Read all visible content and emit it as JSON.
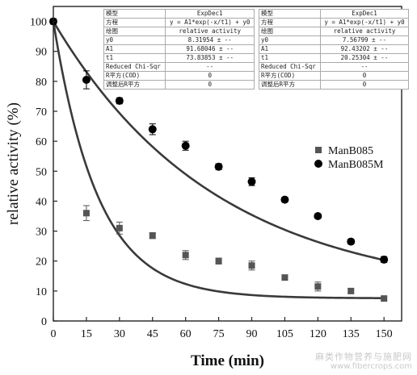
{
  "chart_data": {
    "type": "scatter",
    "xlabel": "Time (min)",
    "ylabel": "relative activity (%)",
    "x_ticks": [
      0,
      15,
      30,
      45,
      60,
      75,
      90,
      105,
      120,
      135,
      150
    ],
    "y_ticks": [
      0,
      10,
      20,
      30,
      40,
      50,
      60,
      70,
      80,
      90,
      100
    ],
    "xlim": [
      0,
      158
    ],
    "ylim": [
      0,
      105
    ],
    "legend_position": "right",
    "series": [
      {
        "name": "ManB085",
        "marker": "square",
        "color": "#555555",
        "points": [
          {
            "x": 0,
            "y": 100,
            "err": 0
          },
          {
            "x": 15,
            "y": 36,
            "err": 2.5
          },
          {
            "x": 30,
            "y": 31,
            "err": 2
          },
          {
            "x": 45,
            "y": 28.5,
            "err": 1
          },
          {
            "x": 60,
            "y": 22,
            "err": 1.5
          },
          {
            "x": 75,
            "y": 20,
            "err": 1
          },
          {
            "x": 90,
            "y": 18.5,
            "err": 1.5
          },
          {
            "x": 105,
            "y": 14.5,
            "err": 0.8
          },
          {
            "x": 120,
            "y": 11.5,
            "err": 1.5
          },
          {
            "x": 135,
            "y": 10,
            "err": 0.8
          },
          {
            "x": 150,
            "y": 7.5,
            "err": 0.5
          }
        ],
        "fit": {
          "y0": 7.56799,
          "A1": 92.43202,
          "t1": 20.25304
        }
      },
      {
        "name": "ManB085M",
        "marker": "circle",
        "color": "#000000",
        "points": [
          {
            "x": 0,
            "y": 100,
            "err": 0
          },
          {
            "x": 15,
            "y": 80.5,
            "err": 3
          },
          {
            "x": 30,
            "y": 73.5,
            "err": 1
          },
          {
            "x": 45,
            "y": 64,
            "err": 1.8
          },
          {
            "x": 60,
            "y": 58.5,
            "err": 1.5
          },
          {
            "x": 75,
            "y": 51.5,
            "err": 1
          },
          {
            "x": 90,
            "y": 46.5,
            "err": 1.3
          },
          {
            "x": 105,
            "y": 40.5,
            "err": 0.8
          },
          {
            "x": 120,
            "y": 35,
            "err": 0.8
          },
          {
            "x": 135,
            "y": 26.5,
            "err": 0.8
          },
          {
            "x": 150,
            "y": 20.5,
            "err": 1
          }
        ],
        "fit": {
          "y0": 8.31954,
          "A1": 91.68046,
          "t1": 73.83853
        }
      }
    ],
    "fit_tables": [
      {
        "rows": [
          [
            "模型",
            "ExpDec1"
          ],
          [
            "方程",
            "y = A1*exp(-x/t1) + y0"
          ],
          [
            "绘图",
            "relative activity"
          ],
          [
            "y0",
            "8.31954 ± --"
          ],
          [
            "A1",
            "91.68046 ± --"
          ],
          [
            "t1",
            "73.83853 ± --"
          ],
          [
            "Reduced Chi-Sqr",
            "--"
          ],
          [
            "R平方(COD)",
            "0"
          ],
          [
            "调整后R平方",
            "0"
          ]
        ]
      },
      {
        "rows": [
          [
            "模型",
            "ExpDec1"
          ],
          [
            "方程",
            "y = A1*exp(-x/t1) + y0"
          ],
          [
            "绘图",
            "relative activity"
          ],
          [
            "y0",
            "7.56799 ± --"
          ],
          [
            "A1",
            "92.43202 ± --"
          ],
          [
            "t1",
            "20.25304 ± --"
          ],
          [
            "Reduced Chi-Sqr",
            "--"
          ],
          [
            "R平方(COD)",
            "0"
          ],
          [
            "调整后R平方",
            "0"
          ]
        ]
      }
    ]
  },
  "watermark": {
    "line1": "麻类作物营养与施肥网",
    "line2": "www.fibercrops.com"
  }
}
